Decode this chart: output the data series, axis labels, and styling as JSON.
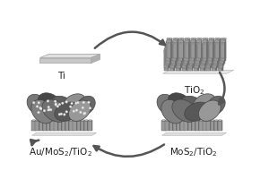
{
  "bg_color": "#ffffff",
  "arrow_color": "#555555",
  "labels": {
    "ti": "Ti",
    "tio2": "TiO$_2$",
    "mos2tio2": "MoS$_2$/TiO$_2$",
    "aumos2tio2": "Au/MoS$_2$/TiO$_2$"
  },
  "label_fontsize": 7.5,
  "ti_plate_top": "#d8d8d8",
  "ti_plate_front": "#b8b8b8",
  "ti_plate_side": "#c8c8c8",
  "tio2_base_color": "#e0e0e0",
  "tio2_tube_body": "#a0a0a0",
  "tio2_tube_top": "#c0c0c0",
  "tio2_tube_dark": "#707070",
  "mos2_colors": [
    "#606060",
    "#787878",
    "#909090",
    "#484848",
    "#686868",
    "#808080",
    "#585858",
    "#707070",
    "#989898",
    "#505050"
  ],
  "au_dot_color": "#e8e8e8",
  "sub_base_color": "#d5d5d5",
  "sub_tube_color": "#909090"
}
